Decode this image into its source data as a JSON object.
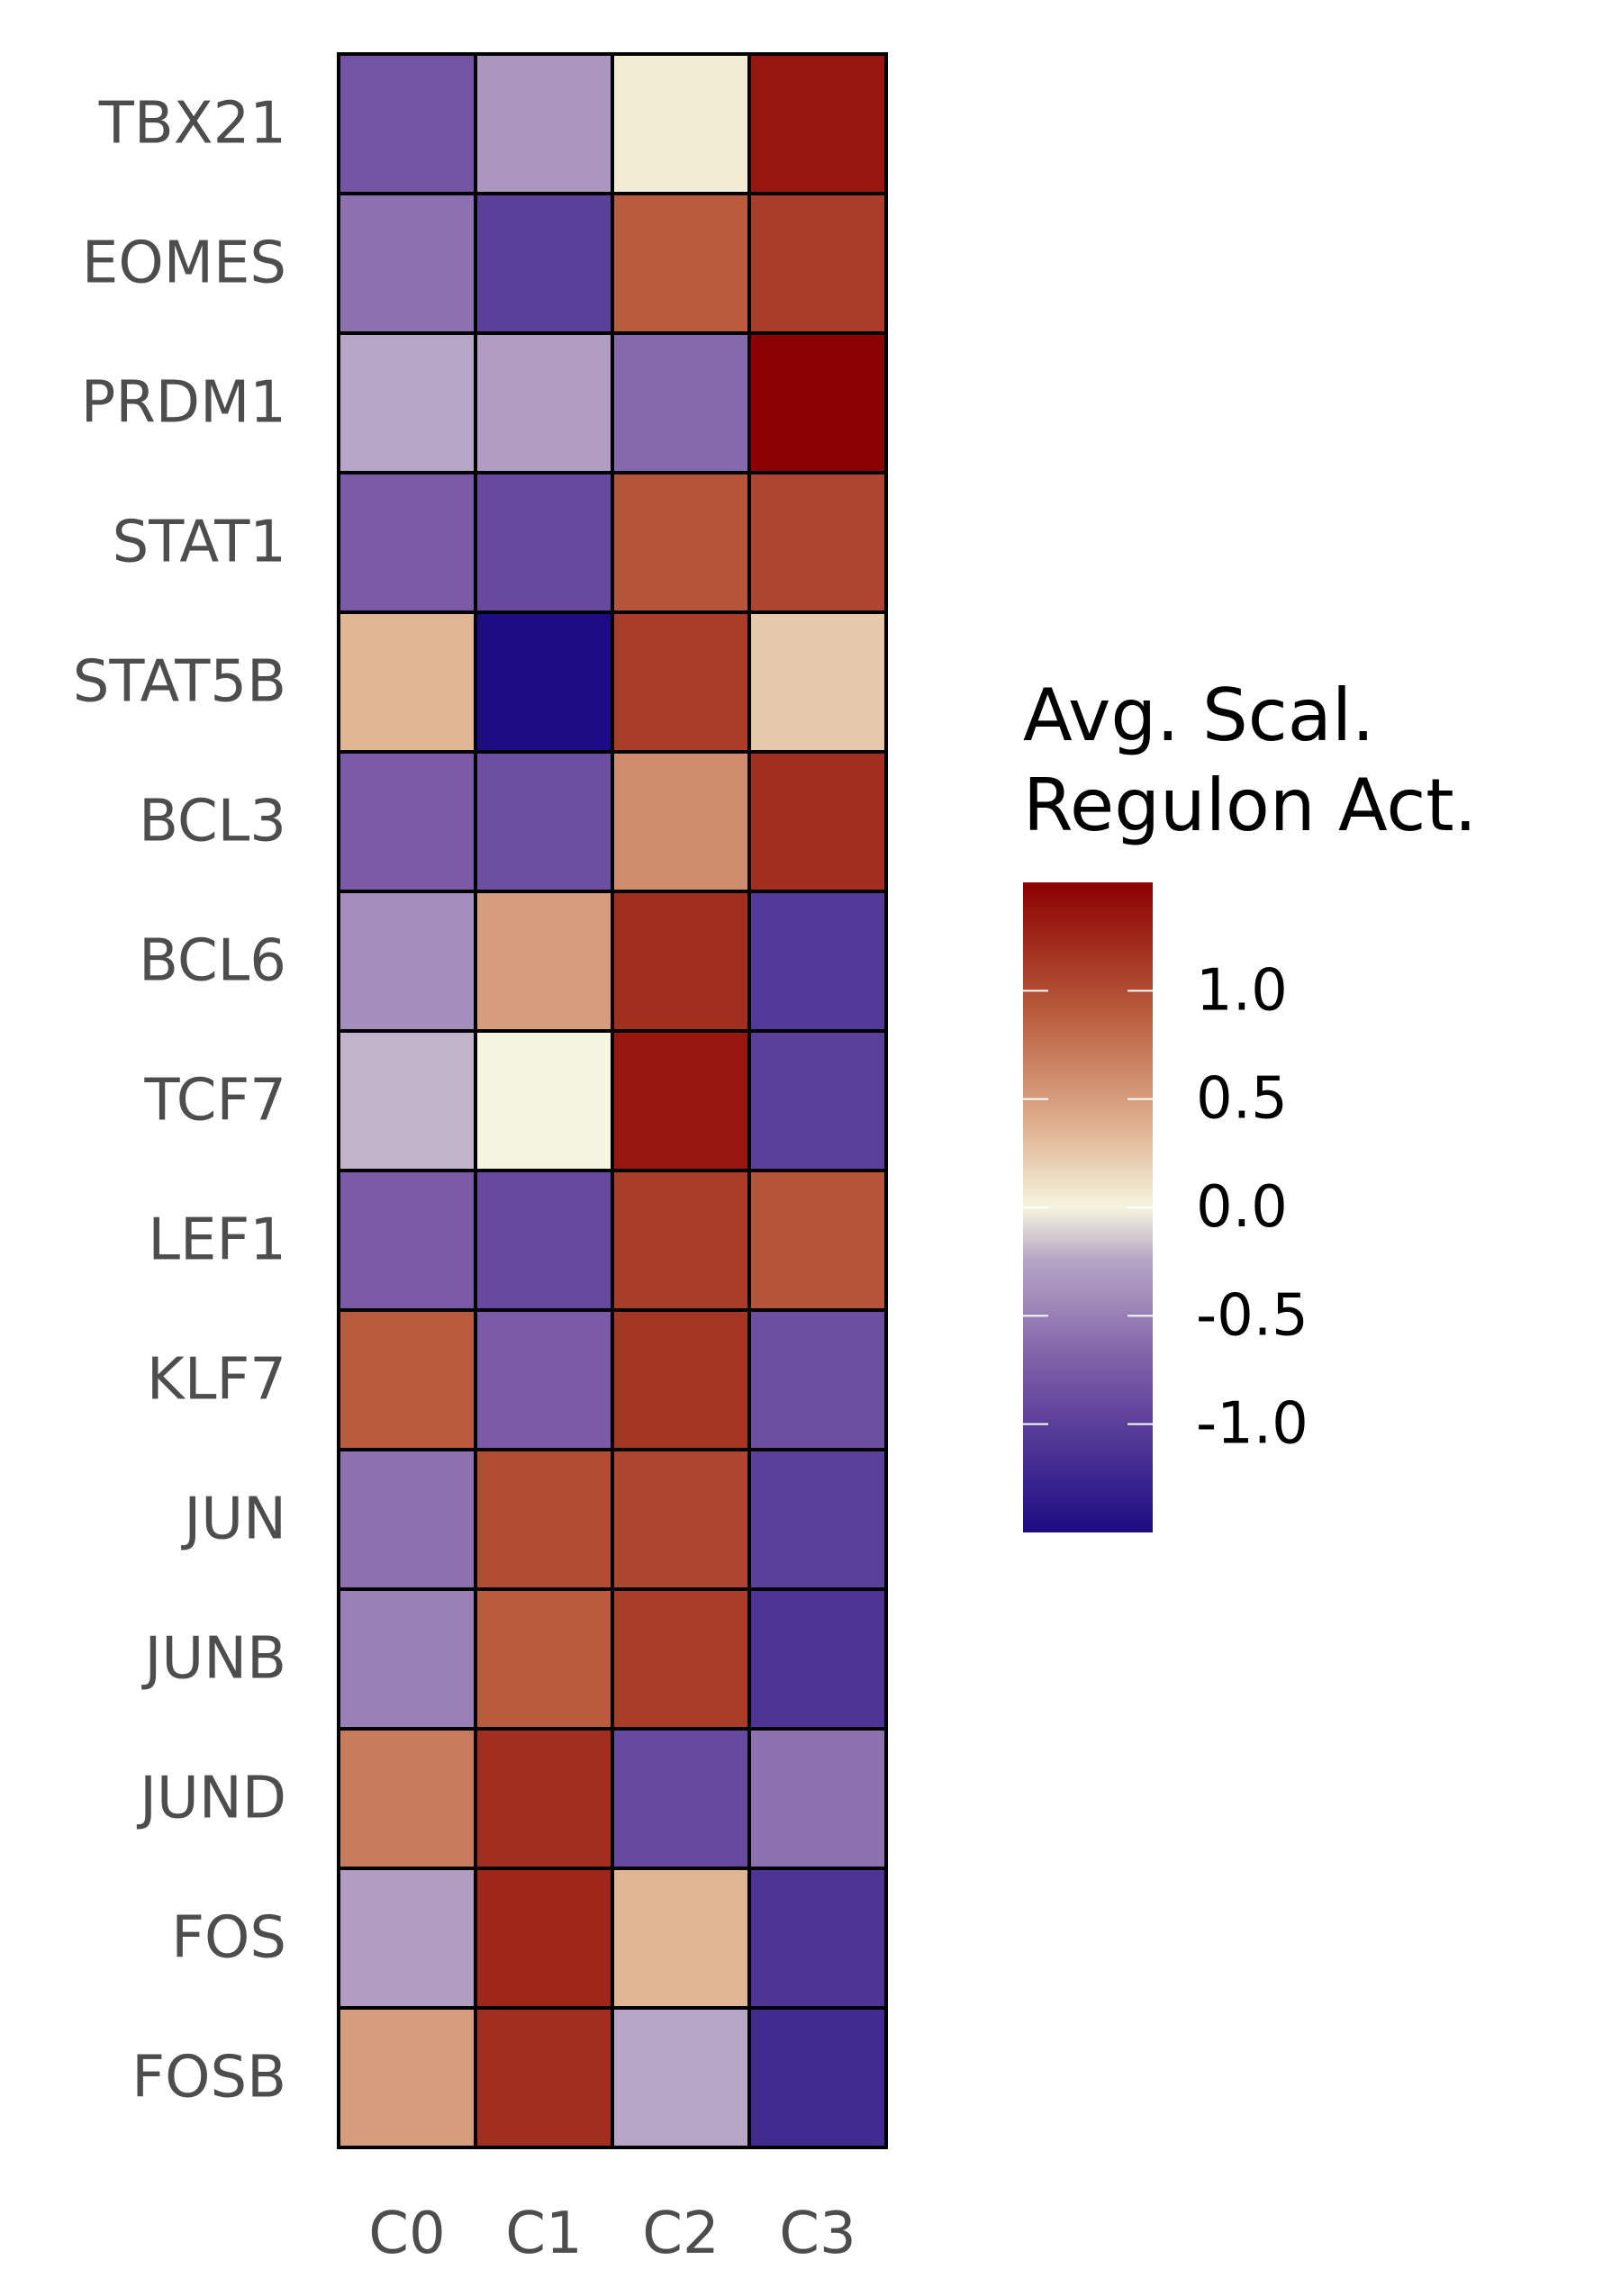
{
  "chart_data": {
    "type": "heatmap",
    "rows": [
      "TBX21",
      "EOMES",
      "PRDM1",
      "STAT1",
      "STAT5B",
      "BCL3",
      "BCL6",
      "TCF7",
      "LEF1",
      "KLF7",
      "JUN",
      "JUNB",
      "JUND",
      "FOS",
      "FOSB"
    ],
    "columns": [
      "C0",
      "C1",
      "C2",
      "C3"
    ],
    "values": [
      [
        -0.8,
        -0.35,
        0.05,
        1.35
      ],
      [
        -0.6,
        -1.0,
        0.9,
        1.1
      ],
      [
        -0.25,
        -0.3,
        -0.65,
        1.5
      ],
      [
        -0.75,
        -0.9,
        0.95,
        1.05
      ],
      [
        0.35,
        -1.5,
        1.1,
        0.25
      ],
      [
        -0.75,
        -0.85,
        0.6,
        1.2
      ],
      [
        -0.4,
        0.5,
        1.2,
        -1.05
      ],
      [
        -0.2,
        0.0,
        1.35,
        -1.0
      ],
      [
        -0.75,
        -0.9,
        1.1,
        0.95
      ],
      [
        0.9,
        -0.75,
        1.15,
        -0.85
      ],
      [
        -0.6,
        1.0,
        1.05,
        -1.0
      ],
      [
        -0.5,
        0.9,
        1.1,
        -1.1
      ],
      [
        0.7,
        1.2,
        -0.9,
        -0.6
      ],
      [
        -0.3,
        1.25,
        0.35,
        -1.1
      ],
      [
        0.5,
        1.2,
        -0.25,
        -1.2
      ]
    ],
    "colorbar": {
      "title_lines": [
        "Avg. Scal.",
        "Regulon Act."
      ],
      "ticks": [
        1.0,
        0.5,
        0.0,
        -0.5,
        -1.0
      ],
      "tick_labels": [
        "1.0",
        "0.5",
        "0.0",
        "-0.5",
        "-1.0"
      ],
      "range": [
        -1.5,
        1.5
      ],
      "colors": {
        "low": "#1c0b82",
        "low_mid": "#7a5aa6",
        "lower_mid": "#b7a6c5",
        "mid": "#f5f5df",
        "upper_mid": "#e0b493",
        "high_mid": "#b95c3d",
        "high": "#8b0000"
      }
    },
    "cell_border_color": "#000000"
  }
}
